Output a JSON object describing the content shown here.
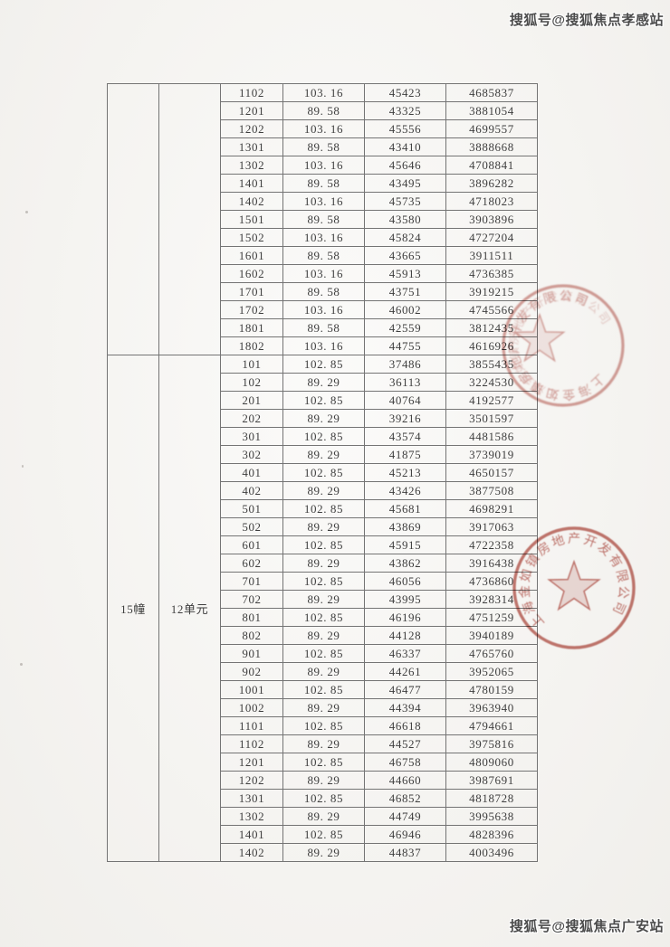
{
  "watermarks": {
    "top": "搜狐号@搜狐焦点孝感站",
    "bottom": "搜狐号@搜狐焦点广安站"
  },
  "table": {
    "sections": [
      {
        "building": "",
        "unit": "",
        "rows": [
          [
            "1102",
            "103. 16",
            "45423",
            "4685837"
          ],
          [
            "1201",
            "89. 58",
            "43325",
            "3881054"
          ],
          [
            "1202",
            "103. 16",
            "45556",
            "4699557"
          ],
          [
            "1301",
            "89. 58",
            "43410",
            "3888668"
          ],
          [
            "1302",
            "103. 16",
            "45646",
            "4708841"
          ],
          [
            "1401",
            "89. 58",
            "43495",
            "3896282"
          ],
          [
            "1402",
            "103. 16",
            "45735",
            "4718023"
          ],
          [
            "1501",
            "89. 58",
            "43580",
            "3903896"
          ],
          [
            "1502",
            "103. 16",
            "45824",
            "4727204"
          ],
          [
            "1601",
            "89. 58",
            "43665",
            "3911511"
          ],
          [
            "1602",
            "103. 16",
            "45913",
            "4736385"
          ],
          [
            "1701",
            "89. 58",
            "43751",
            "3919215"
          ],
          [
            "1702",
            "103. 16",
            "46002",
            "4745566"
          ],
          [
            "1801",
            "89. 58",
            "42559",
            "3812435"
          ],
          [
            "1802",
            "103. 16",
            "44755",
            "4616926"
          ]
        ]
      },
      {
        "building": "15幢",
        "unit": "12单元",
        "rows": [
          [
            "101",
            "102. 85",
            "37486",
            "3855435"
          ],
          [
            "102",
            "89. 29",
            "36113",
            "3224530"
          ],
          [
            "201",
            "102. 85",
            "40764",
            "4192577"
          ],
          [
            "202",
            "89. 29",
            "39216",
            "3501597"
          ],
          [
            "301",
            "102. 85",
            "43574",
            "4481586"
          ],
          [
            "302",
            "89. 29",
            "41875",
            "3739019"
          ],
          [
            "401",
            "102. 85",
            "45213",
            "4650157"
          ],
          [
            "402",
            "89. 29",
            "43426",
            "3877508"
          ],
          [
            "501",
            "102. 85",
            "45681",
            "4698291"
          ],
          [
            "502",
            "89. 29",
            "43869",
            "3917063"
          ],
          [
            "601",
            "102. 85",
            "45915",
            "4722358"
          ],
          [
            "602",
            "89. 29",
            "43862",
            "3916438"
          ],
          [
            "701",
            "102. 85",
            "46056",
            "4736860"
          ],
          [
            "702",
            "89. 29",
            "43995",
            "3928314"
          ],
          [
            "801",
            "102. 85",
            "46196",
            "4751259"
          ],
          [
            "802",
            "89. 29",
            "44128",
            "3940189"
          ],
          [
            "901",
            "102. 85",
            "46337",
            "4765760"
          ],
          [
            "902",
            "89. 29",
            "44261",
            "3952065"
          ],
          [
            "1001",
            "102. 85",
            "46477",
            "4780159"
          ],
          [
            "1002",
            "89. 29",
            "44394",
            "3963940"
          ],
          [
            "1101",
            "102. 85",
            "46618",
            "4794661"
          ],
          [
            "1102",
            "89. 29",
            "44527",
            "3975816"
          ],
          [
            "1201",
            "102. 85",
            "46758",
            "4809060"
          ],
          [
            "1202",
            "89. 29",
            "44660",
            "3987691"
          ],
          [
            "1301",
            "102. 85",
            "46852",
            "4818728"
          ],
          [
            "1302",
            "89. 29",
            "44749",
            "3995638"
          ],
          [
            "1401",
            "102. 85",
            "46946",
            "4828396"
          ],
          [
            "1402",
            "89. 29",
            "44837",
            "4003496"
          ]
        ]
      }
    ]
  },
  "stamps": [
    {
      "arc_text": "上海金如镇房地产开发有限公司",
      "color": "#b5524a"
    },
    {
      "arc_text": "上海金如镇房地产开发有限公司",
      "color": "#b5524a"
    }
  ]
}
